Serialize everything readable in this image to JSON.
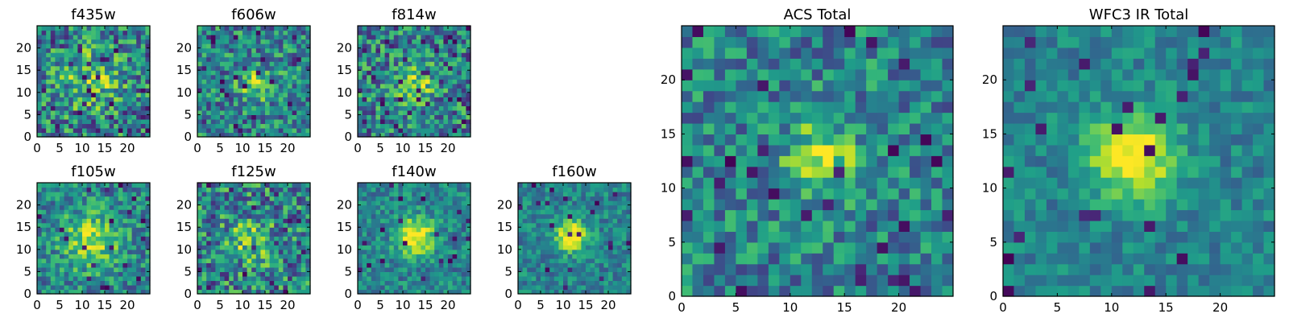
{
  "chart_data": [
    {
      "type": "heatmap",
      "title": "f435w",
      "xlim": [
        0,
        25
      ],
      "ylim": [
        0,
        25
      ],
      "xticks": [
        0,
        5,
        10,
        15,
        20
      ],
      "yticks": [
        0,
        5,
        10,
        15,
        20
      ],
      "colormap": "viridis",
      "peak": [
        12,
        13
      ],
      "sigma": 4.5,
      "signal": 0.3,
      "noise": 0.34,
      "spike_rate": 0.05,
      "seed": 435
    },
    {
      "type": "heatmap",
      "title": "f606w",
      "xlim": [
        0,
        25
      ],
      "ylim": [
        0,
        25
      ],
      "xticks": [
        0,
        5,
        10,
        15,
        20
      ],
      "yticks": [
        0,
        5,
        10,
        15,
        20
      ],
      "colormap": "viridis",
      "peak": [
        13,
        12
      ],
      "sigma": 2.6,
      "signal": 0.36,
      "noise": 0.3,
      "spike_rate": 0.04,
      "seed": 606
    },
    {
      "type": "heatmap",
      "title": "f814w",
      "xlim": [
        0,
        25
      ],
      "ylim": [
        0,
        25
      ],
      "xticks": [
        0,
        5,
        10,
        15,
        20
      ],
      "yticks": [
        0,
        5,
        10,
        15,
        20
      ],
      "colormap": "viridis",
      "peak": [
        13,
        12
      ],
      "sigma": 2.8,
      "signal": 0.38,
      "noise": 0.32,
      "spike_rate": 0.05,
      "seed": 814
    },
    {
      "type": "heatmap",
      "title": "f105w",
      "xlim": [
        0,
        25
      ],
      "ylim": [
        0,
        25
      ],
      "xticks": [
        0,
        5,
        10,
        15,
        20
      ],
      "yticks": [
        0,
        5,
        10,
        15,
        20
      ],
      "colormap": "viridis",
      "peak": [
        12,
        12
      ],
      "sigma": 4.5,
      "signal": 0.4,
      "noise": 0.25,
      "spike_rate": 0.03,
      "seed": 105
    },
    {
      "type": "heatmap",
      "title": "f125w",
      "xlim": [
        0,
        25
      ],
      "ylim": [
        0,
        25
      ],
      "xticks": [
        0,
        5,
        10,
        15,
        20
      ],
      "yticks": [
        0,
        5,
        10,
        15,
        20
      ],
      "colormap": "viridis",
      "peak": [
        12,
        12
      ],
      "sigma": 3.5,
      "signal": 0.3,
      "noise": 0.34,
      "spike_rate": 0.03,
      "seed": 125
    },
    {
      "type": "heatmap",
      "title": "f140w",
      "xlim": [
        0,
        25
      ],
      "ylim": [
        0,
        25
      ],
      "xticks": [
        0,
        5,
        10,
        15,
        20
      ],
      "yticks": [
        0,
        5,
        10,
        15,
        20
      ],
      "colormap": "viridis",
      "peak": [
        13,
        13
      ],
      "sigma": 3.0,
      "signal": 0.6,
      "noise": 0.2,
      "spike_rate": 0.03,
      "seed": 140
    },
    {
      "type": "heatmap",
      "title": "f160w",
      "xlim": [
        0,
        25
      ],
      "ylim": [
        0,
        25
      ],
      "xticks": [
        0,
        5,
        10,
        15,
        20
      ],
      "yticks": [
        0,
        5,
        10,
        15,
        20
      ],
      "colormap": "viridis",
      "peak": [
        12,
        13
      ],
      "sigma": 2.3,
      "signal": 0.65,
      "noise": 0.18,
      "spike_rate": 0.03,
      "seed": 160
    },
    {
      "type": "heatmap",
      "title": "ACS Total",
      "xlim": [
        0,
        25
      ],
      "ylim": [
        0,
        25
      ],
      "xticks": [
        0,
        5,
        10,
        15,
        20
      ],
      "yticks": [
        0,
        5,
        10,
        15,
        20
      ],
      "colormap": "viridis",
      "peak": [
        13,
        13
      ],
      "sigma": 2.4,
      "signal": 0.4,
      "noise": 0.25,
      "spike_rate": 0.05,
      "seed": 999
    },
    {
      "type": "heatmap",
      "title": "WFC3 IR Total",
      "xlim": [
        0,
        25
      ],
      "ylim": [
        0,
        25
      ],
      "xticks": [
        0,
        5,
        10,
        15,
        20
      ],
      "yticks": [
        0,
        5,
        10,
        15,
        20
      ],
      "colormap": "viridis",
      "peak": [
        12,
        13
      ],
      "sigma": 2.7,
      "signal": 0.65,
      "noise": 0.15,
      "spike_rate": 0.04,
      "seed": 777
    }
  ]
}
